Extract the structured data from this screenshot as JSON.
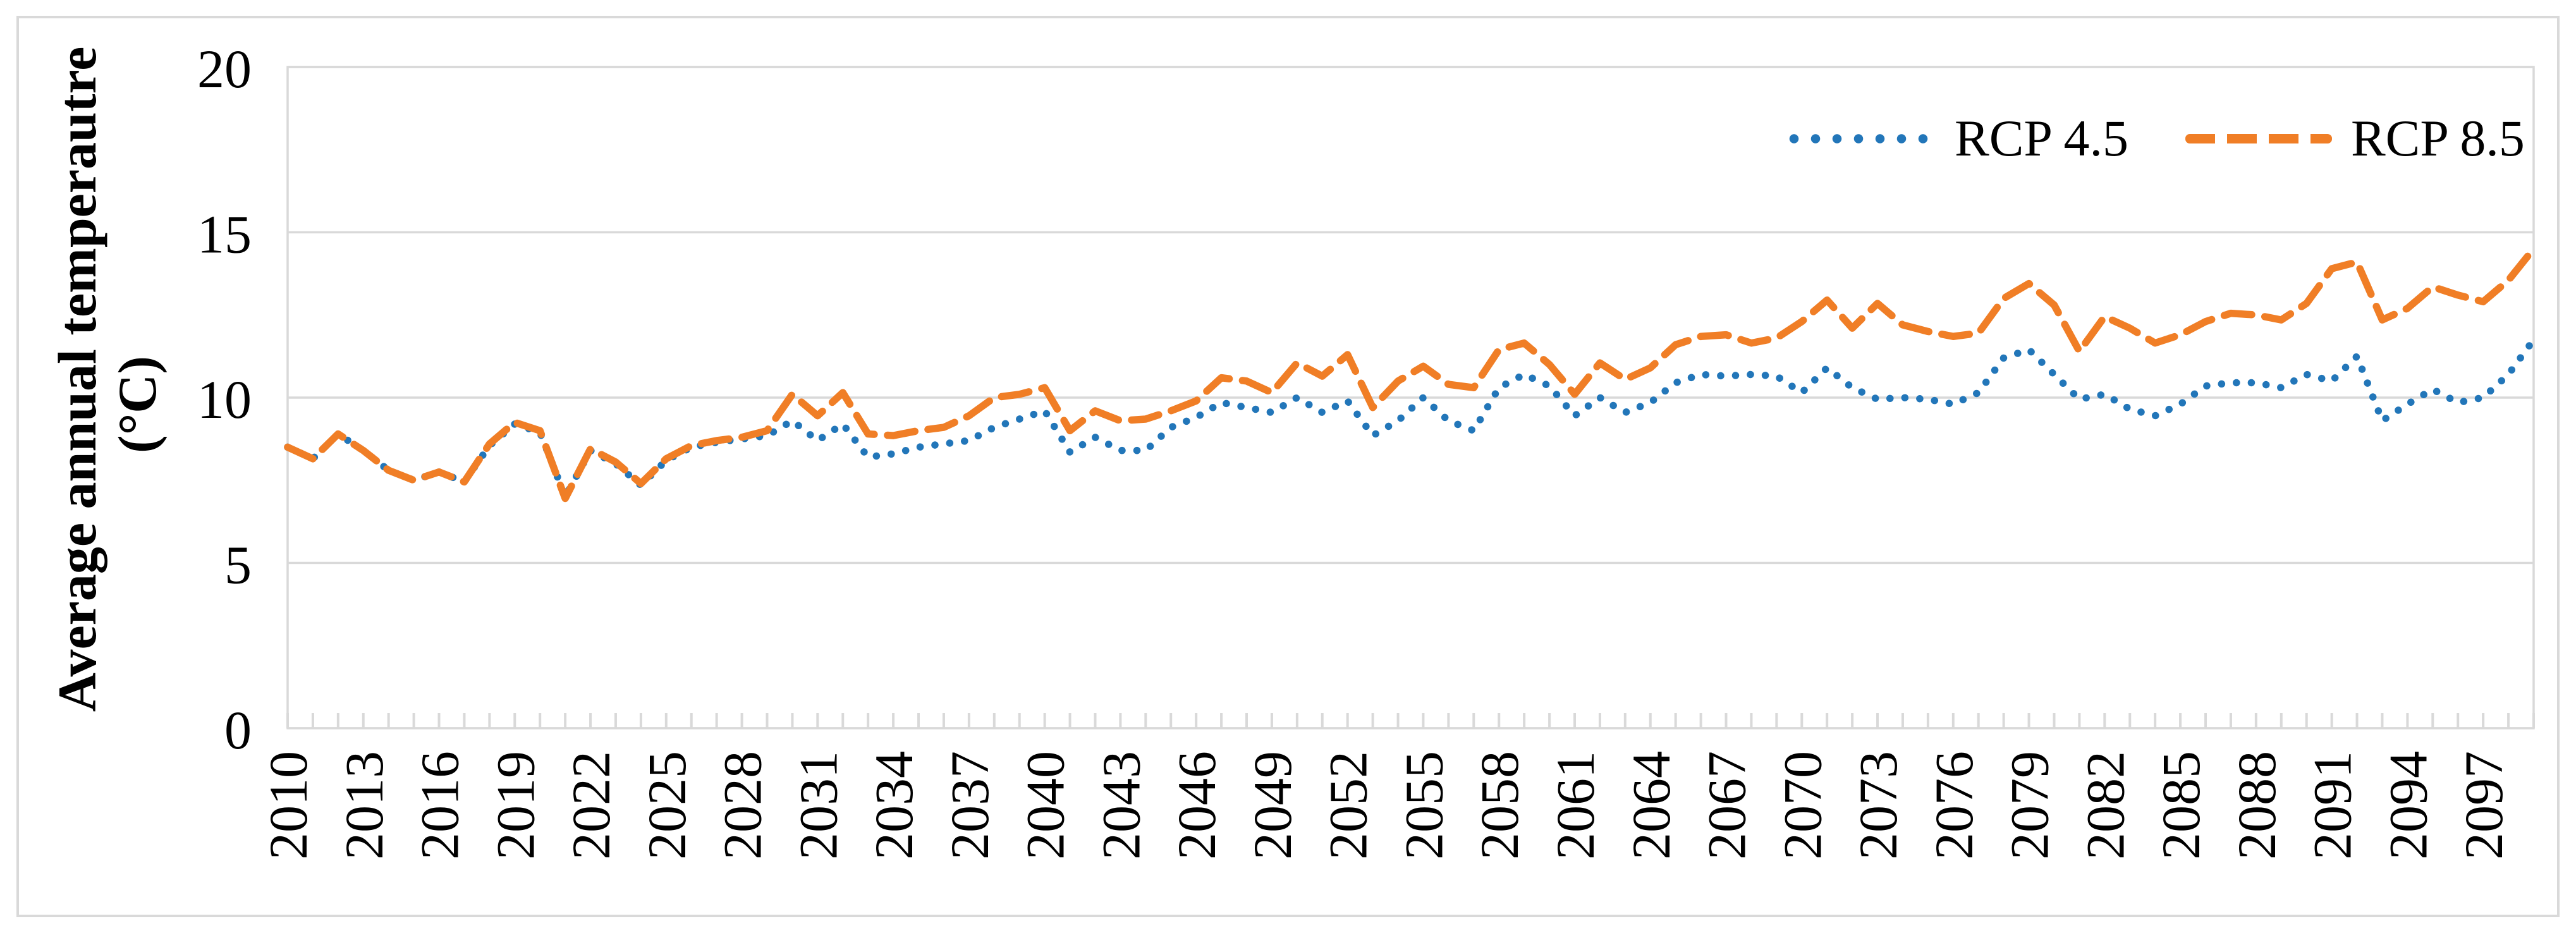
{
  "figure": {
    "background": "#ffffff",
    "border_color": "#d9d9d9"
  },
  "y_axis": {
    "title": "Average annual temperautre",
    "unit": "(°C)",
    "ticks": [
      0,
      5,
      10,
      15,
      20
    ],
    "range": [
      0,
      20
    ],
    "grid_color": "#d9d9d9",
    "label_color": "#000000"
  },
  "x_axis": {
    "tick_labels": [
      "2010",
      "2013",
      "2016",
      "2019",
      "2022",
      "2025",
      "2028",
      "2031",
      "2034",
      "2037",
      "2040",
      "2043",
      "2046",
      "2049",
      "2052",
      "2055",
      "2058",
      "2061",
      "2064",
      "2067",
      "2070",
      "2073",
      "2076",
      "2079",
      "2082",
      "2085",
      "2088",
      "2091",
      "2094",
      "2097"
    ],
    "label_interval": 3,
    "tick_color": "#d9d9d9"
  },
  "legend": {
    "rcp45_label": "RCP 4.5",
    "rcp85_label": "RCP 8.5"
  },
  "chart_data": {
    "type": "line",
    "title": "",
    "xlabel": "",
    "ylabel": "Average annual temperautre (°C)",
    "ylim": [
      0,
      20
    ],
    "grid": true,
    "legend_position": "top-right",
    "x": [
      2010,
      2011,
      2012,
      2013,
      2014,
      2015,
      2016,
      2017,
      2018,
      2019,
      2020,
      2021,
      2022,
      2023,
      2024,
      2025,
      2026,
      2027,
      2028,
      2029,
      2030,
      2031,
      2032,
      2033,
      2034,
      2035,
      2036,
      2037,
      2038,
      2039,
      2040,
      2041,
      2042,
      2043,
      2044,
      2045,
      2046,
      2047,
      2048,
      2049,
      2050,
      2051,
      2052,
      2053,
      2054,
      2055,
      2056,
      2057,
      2058,
      2059,
      2060,
      2061,
      2062,
      2063,
      2064,
      2065,
      2066,
      2067,
      2068,
      2069,
      2070,
      2071,
      2072,
      2073,
      2074,
      2075,
      2076,
      2077,
      2078,
      2079,
      2080,
      2081,
      2082,
      2083,
      2084,
      2085,
      2086,
      2087,
      2088,
      2089,
      2090,
      2091,
      2092,
      2093,
      2094,
      2095,
      2096,
      2097,
      2098,
      2099
    ],
    "series": [
      {
        "name": "RCP 4.5",
        "color": "#2276b9",
        "line_style": "dotted",
        "values": [
          8.5,
          8.15,
          8.9,
          8.4,
          7.8,
          7.5,
          7.75,
          7.45,
          8.55,
          9.2,
          8.95,
          7.0,
          8.4,
          8.0,
          7.35,
          8.1,
          8.5,
          8.65,
          8.75,
          8.85,
          9.3,
          8.7,
          9.2,
          8.2,
          8.3,
          8.5,
          8.6,
          8.7,
          9.1,
          9.35,
          9.6,
          8.35,
          8.8,
          8.4,
          8.4,
          9.1,
          9.4,
          9.85,
          9.7,
          9.55,
          10.0,
          9.55,
          9.9,
          8.85,
          9.3,
          10.0,
          9.3,
          9.0,
          10.3,
          10.7,
          10.35,
          9.45,
          10.0,
          9.55,
          9.85,
          10.45,
          10.7,
          10.65,
          10.7,
          10.65,
          10.15,
          10.9,
          10.3,
          9.95,
          10.0,
          9.95,
          9.8,
          10.15,
          11.2,
          11.45,
          10.7,
          9.95,
          10.1,
          9.65,
          9.45,
          9.8,
          10.35,
          10.45,
          10.45,
          10.3,
          10.7,
          10.5,
          11.25,
          9.3,
          9.8,
          10.25,
          9.85,
          10.0,
          10.7,
          11.75
        ]
      },
      {
        "name": "RCP 8.5",
        "color": "#f07e26",
        "line_style": "dashed",
        "values": [
          8.5,
          8.15,
          8.9,
          8.4,
          7.8,
          7.5,
          7.75,
          7.45,
          8.6,
          9.25,
          9.0,
          6.95,
          8.45,
          8.05,
          7.4,
          8.15,
          8.55,
          8.7,
          8.8,
          9.0,
          10.1,
          9.45,
          10.15,
          8.9,
          8.85,
          9.0,
          9.1,
          9.45,
          10.0,
          10.1,
          10.3,
          9.0,
          9.6,
          9.3,
          9.35,
          9.6,
          9.9,
          10.6,
          10.5,
          10.15,
          11.05,
          10.65,
          11.3,
          9.7,
          10.5,
          10.95,
          10.4,
          10.3,
          11.45,
          11.65,
          11.0,
          10.1,
          11.05,
          10.55,
          10.9,
          11.6,
          11.85,
          11.9,
          11.65,
          11.8,
          12.3,
          12.95,
          12.1,
          12.85,
          12.2,
          12.0,
          11.85,
          11.95,
          13.0,
          13.45,
          12.8,
          11.4,
          12.45,
          12.1,
          11.65,
          11.9,
          12.3,
          12.55,
          12.5,
          12.35,
          12.85,
          13.9,
          14.1,
          12.35,
          12.7,
          13.35,
          13.1,
          12.9,
          13.55,
          14.5
        ]
      }
    ]
  }
}
